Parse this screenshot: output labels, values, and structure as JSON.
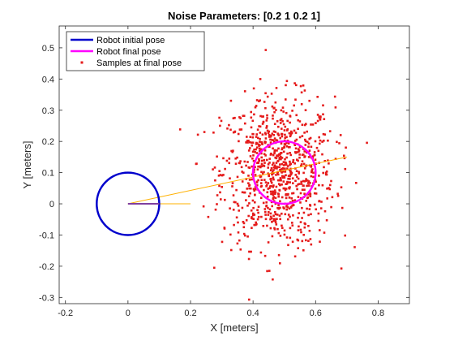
{
  "chart_data": {
    "type": "scatter",
    "title": "Noise Parameters: [0.2            1          0.2           1]",
    "xlabel": "X [meters]",
    "ylabel": "Y [meters]",
    "xlim": [
      -0.22,
      0.9
    ],
    "ylim": [
      -0.32,
      0.57
    ],
    "xticks": [
      -0.2,
      0,
      0.2,
      0.4,
      0.6,
      0.8
    ],
    "xtick_labels": [
      "-0.2",
      "0",
      "0.2",
      "0.4",
      "0.6",
      "0.8"
    ],
    "yticks": [
      -0.3,
      -0.2,
      -0.1,
      0,
      0.1,
      0.2,
      0.3,
      0.4,
      0.5
    ],
    "ytick_labels": [
      "-0.3",
      "-0.2",
      "-0.1",
      "0",
      "0.1",
      "0.2",
      "0.3",
      "0.4",
      "0.5"
    ],
    "grid": false,
    "legend_position": "top-left",
    "series": [
      {
        "name": "Robot initial pose",
        "kind": "circle",
        "center": [
          0,
          0
        ],
        "radius": 0.1,
        "heading_line": [
          [
            0,
            0
          ],
          [
            0.1,
            0
          ]
        ],
        "color": "#0000cc"
      },
      {
        "name": "Robot final pose",
        "kind": "circle",
        "center": [
          0.5,
          0.1
        ],
        "radius": 0.1,
        "color": "#ff00ff"
      },
      {
        "name": "Samples at final pose",
        "kind": "scatter",
        "color": "#e51a1a",
        "center_x": 0.48,
        "center_y": 0.1,
        "spread_x": 0.09,
        "spread_y": 0.12,
        "count": 900
      }
    ],
    "lines": [
      {
        "from": [
          0,
          0
        ],
        "to": [
          0.7,
          0.15
        ],
        "color": "#ffb000"
      },
      {
        "from": [
          0,
          0
        ],
        "to": [
          0.2,
          0
        ],
        "color": "#ffb000"
      }
    ]
  }
}
